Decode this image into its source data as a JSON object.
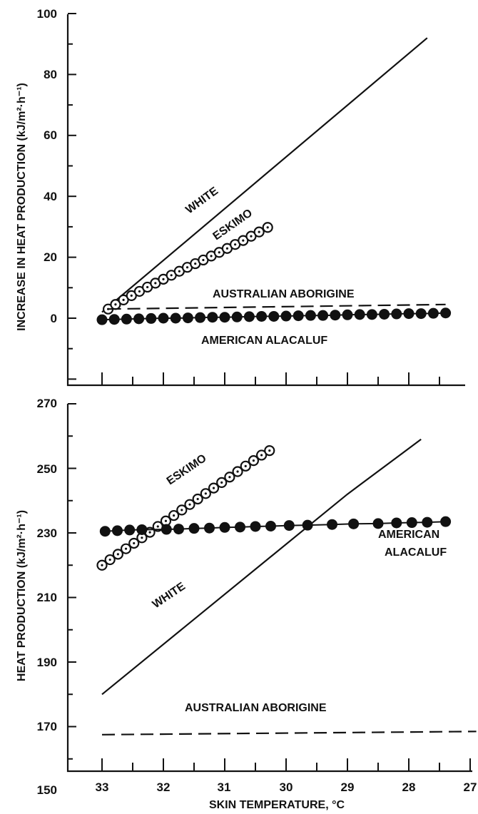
{
  "chart_data": [
    {
      "type": "line",
      "panel": "top",
      "title": "",
      "xlabel": "",
      "ylabel": "INCREASE IN HEAT PRODUCTION (kJ/m²·h⁻¹)",
      "xlim": [
        33,
        27
      ],
      "ylim": [
        -20,
        100
      ],
      "x_reversed": true,
      "y_ticks": [
        "100",
        "80",
        "60",
        "40",
        "20",
        "0"
      ],
      "y_tick_values": [
        100,
        80,
        60,
        40,
        20,
        0
      ],
      "grid": false,
      "legend": "none",
      "series": [
        {
          "name": "WHITE",
          "style": "solid",
          "x": [
            33,
            27.7
          ],
          "y": [
            2,
            92
          ]
        },
        {
          "name": "ESKIMO",
          "style": "open-circles",
          "x": [
            32.9,
            32.78,
            32.65,
            32.52,
            32.39,
            32.26,
            32.13,
            32.0,
            31.87,
            31.74,
            31.61,
            31.48,
            31.35,
            31.22,
            31.09,
            30.96,
            30.83,
            30.7,
            30.57,
            30.44,
            30.3
          ],
          "y": [
            3,
            4.5,
            6,
            7.4,
            8.8,
            10.2,
            11.5,
            12.8,
            14.1,
            15.4,
            16.7,
            17.9,
            19.1,
            20.4,
            21.6,
            22.9,
            24.2,
            25.5,
            26.9,
            28.3,
            29.8
          ]
        },
        {
          "name": "AUSTRALIAN ABORIGINE",
          "style": "dashed",
          "x": [
            32.9,
            27.4
          ],
          "y": [
            3,
            4.5
          ]
        },
        {
          "name": "AMERICAN ALACALUF",
          "style": "filled-circles",
          "x": [
            33.0,
            32.8,
            32.6,
            32.4,
            32.2,
            32.0,
            31.8,
            31.6,
            31.4,
            31.2,
            31.0,
            30.8,
            30.6,
            30.4,
            30.2,
            30.0,
            29.8,
            29.6,
            29.4,
            29.2,
            29.0,
            28.8,
            28.6,
            28.4,
            28.2,
            28.0,
            27.8,
            27.6,
            27.4
          ],
          "y": [
            -0.5,
            -0.4,
            -0.3,
            -0.2,
            -0.1,
            0.0,
            0.0,
            0.1,
            0.2,
            0.3,
            0.3,
            0.4,
            0.5,
            0.6,
            0.6,
            0.7,
            0.8,
            0.9,
            0.9,
            1.0,
            1.1,
            1.2,
            1.2,
            1.3,
            1.4,
            1.5,
            1.5,
            1.6,
            1.7
          ]
        }
      ],
      "labels": {
        "white": "WHITE",
        "eskimo": "ESKIMO",
        "aborigine": "AUSTRALIAN ABORIGINE",
        "alacaluf": "AMERICAN ALACALUF"
      }
    },
    {
      "type": "line",
      "panel": "bottom",
      "title": "",
      "xlabel": "SKIN TEMPERATURE, °C",
      "ylabel": "HEAT PRODUCTION (kJ/m²·h⁻¹)",
      "xlim": [
        33,
        27
      ],
      "ylim": [
        150,
        270
      ],
      "x_reversed": true,
      "x_ticks": [
        "33",
        "32",
        "31",
        "30",
        "29",
        "28",
        "27"
      ],
      "x_tick_values": [
        33,
        32,
        31,
        30,
        29,
        28,
        27
      ],
      "y_ticks": [
        "270",
        "250",
        "230",
        "210",
        "190",
        "170",
        "150"
      ],
      "y_tick_values": [
        270,
        250,
        230,
        210,
        190,
        170,
        150
      ],
      "grid": false,
      "legend": "none",
      "series": [
        {
          "name": "WHITE",
          "style": "solid",
          "x": [
            33.0,
            29.0,
            27.8
          ],
          "y": [
            180,
            242,
            259
          ]
        },
        {
          "name": "ESKIMO",
          "style": "open-circles",
          "x": [
            33.0,
            32.87,
            32.74,
            32.61,
            32.48,
            32.35,
            32.22,
            32.09,
            31.96,
            31.83,
            31.7,
            31.57,
            31.44,
            31.31,
            31.18,
            31.05,
            30.92,
            30.79,
            30.66,
            30.53,
            30.4,
            30.27
          ],
          "y": [
            220,
            221.7,
            223.4,
            225.1,
            226.8,
            228.5,
            230.2,
            232.0,
            233.7,
            235.4,
            237.1,
            238.8,
            240.5,
            242.2,
            243.9,
            245.6,
            247.3,
            249.0,
            250.7,
            252.4,
            254.1,
            255.5
          ]
        },
        {
          "name": "AUSTRALIAN ABORIGINE",
          "style": "dashed",
          "x": [
            33.0,
            26.9
          ],
          "y": [
            167.5,
            168.5
          ]
        },
        {
          "name": "AMERICAN ALACALUF",
          "style": "filled-circles",
          "x": [
            32.95,
            32.75,
            32.55,
            32.35,
            31.95,
            31.75,
            31.5,
            31.25,
            31.0,
            30.75,
            30.5,
            30.25,
            29.95,
            29.65,
            29.25,
            28.9,
            28.5,
            28.2,
            27.95,
            27.7,
            27.4
          ],
          "y": [
            230.5,
            230.7,
            230.9,
            231.0,
            231.1,
            231.2,
            231.4,
            231.5,
            231.7,
            231.8,
            232.0,
            232.1,
            232.3,
            232.4,
            232.6,
            232.8,
            232.9,
            233.1,
            233.2,
            233.3,
            233.5
          ]
        }
      ],
      "labels": {
        "white": "WHITE",
        "eskimo": "ESKIMO",
        "aborigine": "AUSTRALIAN ABORIGINE",
        "alacaluf_1": "AMERICAN",
        "alacaluf_2": "ALACALUF"
      }
    }
  ]
}
